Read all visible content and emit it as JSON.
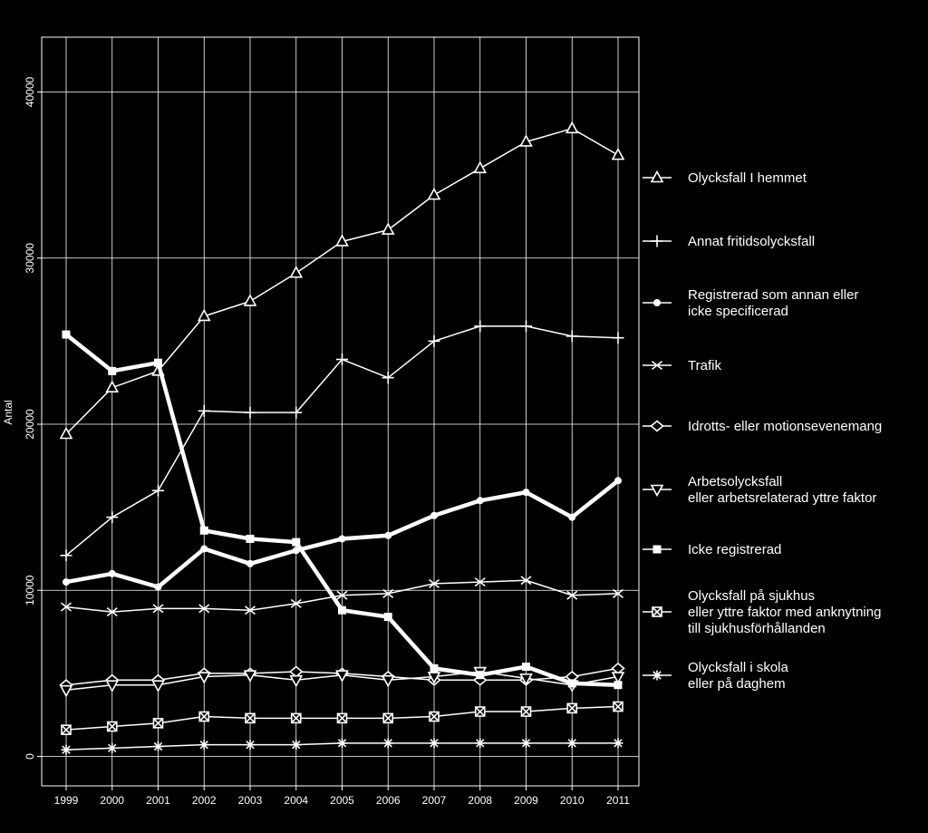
{
  "chart_data": {
    "type": "line",
    "ylabel": "Antal",
    "x": [
      "1999",
      "2000",
      "2001",
      "2002",
      "2003",
      "2004",
      "2005",
      "2006",
      "2007",
      "2008",
      "2009",
      "2010",
      "2011"
    ],
    "ylim": [
      -1500,
      43500
    ],
    "yticks": [
      0,
      10000,
      20000,
      30000,
      40000
    ],
    "ytick_labels": [
      "0",
      "10000",
      "20000",
      "30000",
      "40000"
    ],
    "grid": true,
    "legend_position": "right",
    "series": [
      {
        "name": "Olycksfall I hemmet",
        "marker": "triangle",
        "values": [
          19400,
          22200,
          23200,
          26500,
          27400,
          29100,
          31000,
          31700,
          33800,
          35400,
          37000,
          37800,
          36200
        ]
      },
      {
        "name": "Annat fritidsolycksfall",
        "marker": "plus",
        "values": [
          12100,
          14400,
          16000,
          20800,
          20700,
          20700,
          23900,
          22800,
          25000,
          25900,
          25900,
          25300,
          25200
        ]
      },
      {
        "name": "Registrerad som annan eller icke specificerad",
        "marker": "dot",
        "thick": true,
        "values": [
          10500,
          11000,
          10200,
          12500,
          11600,
          12400,
          13100,
          13300,
          14500,
          15400,
          15900,
          14400,
          16600
        ]
      },
      {
        "name": "Trafik",
        "marker": "x",
        "values": [
          9000,
          8700,
          8900,
          8900,
          8800,
          9200,
          9700,
          9800,
          10400,
          10500,
          10600,
          9700,
          9800
        ]
      },
      {
        "name": "Idrotts- eller motionsevenemang",
        "marker": "diamond",
        "values": [
          4300,
          4600,
          4600,
          5000,
          5000,
          5100,
          5000,
          4800,
          4600,
          4600,
          4600,
          4800,
          5300
        ]
      },
      {
        "name": "Arbetsolycksfall eller arbetsrelaterad yttre faktor",
        "marker": "triangle-down",
        "values": [
          4000,
          4300,
          4300,
          4800,
          4900,
          4600,
          4900,
          4600,
          4800,
          5100,
          4700,
          4300,
          4800
        ]
      },
      {
        "name": "Icke registrerad",
        "marker": "square",
        "thick": true,
        "values": [
          25400,
          23200,
          23700,
          13600,
          13100,
          12900,
          8800,
          8400,
          5300,
          4900,
          5400,
          4400,
          4300
        ]
      },
      {
        "name": "Olycksfall på sjukhus eller yttre faktor med anknytning till sjukhusförhållanden",
        "marker": "square-x",
        "values": [
          1600,
          1800,
          2000,
          2400,
          2300,
          2300,
          2300,
          2300,
          2400,
          2700,
          2700,
          2900,
          3000
        ]
      },
      {
        "name": "Olycksfall i skola eller på daghem",
        "marker": "asterisk",
        "values": [
          400,
          500,
          600,
          700,
          700,
          700,
          800,
          800,
          800,
          800,
          800,
          800,
          800
        ]
      }
    ],
    "legend": [
      {
        "lines": [
          "Olycksfall I hemmet"
        ]
      },
      {
        "lines": [
          "Annat fritidsolycksfall"
        ]
      },
      {
        "lines": [
          "Registrerad som annan eller",
          "icke specificerad"
        ]
      },
      {
        "lines": [
          "Trafik"
        ]
      },
      {
        "lines": [
          "Idrotts- eller motionsevenemang"
        ]
      },
      {
        "lines": [
          "Arbetsolycksfall",
          "eller arbetsrelaterad yttre faktor"
        ]
      },
      {
        "lines": [
          "Icke registrerad"
        ]
      },
      {
        "lines": [
          "Olycksfall på sjukhus",
          "eller yttre faktor med anknytning",
          "till sjukhusförhållanden"
        ]
      },
      {
        "lines": [
          "Olycksfall i skola",
          "eller på daghem"
        ]
      }
    ]
  }
}
